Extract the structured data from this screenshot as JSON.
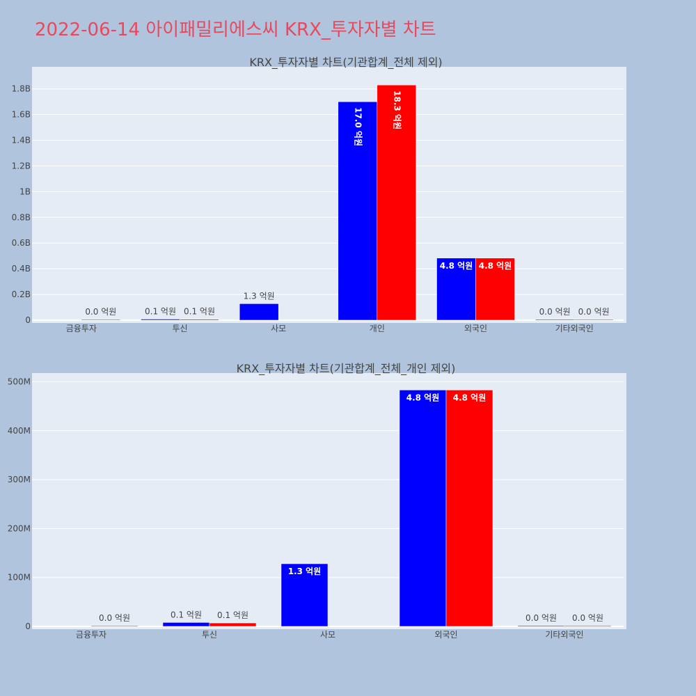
{
  "page": {
    "title": "2022-06-14 아이패밀리에스씨 KRX_투자자별 차트",
    "background": "#b0c4de",
    "title_color": "#e8495c"
  },
  "colors": {
    "plot_bg": "#e5ecf6",
    "series_blue": "#0000ff",
    "series_red": "#ff0000",
    "axis_text": "#444444",
    "grid": "#ffffff"
  },
  "chart_data": [
    {
      "type": "bar",
      "title": "KRX_투자자별 차트(기관합계_전체 제외)",
      "categories": [
        "금융투자",
        "투신",
        "사모",
        "개인",
        "외국인",
        "기타외국인"
      ],
      "series": [
        {
          "color": "#0000ff",
          "values": [
            0,
            8000000,
            128000000,
            1700000000,
            483000000,
            1500000
          ],
          "labels": [
            "",
            "0.1 억원",
            "1.3 억원",
            "17.0 억원",
            "4.8 억원",
            "0.0 억원"
          ]
        },
        {
          "color": "#ff0000",
          "values": [
            1000000,
            7000000,
            0,
            1830000000,
            483000000,
            1500000
          ],
          "labels": [
            "0.0 억원",
            "0.1 억원",
            "",
            "18.3 억원",
            "4.8 억원",
            "0.0 억원"
          ]
        }
      ],
      "ylim": [
        0,
        1950000000
      ],
      "yticks": [
        0,
        200000000,
        400000000,
        600000000,
        800000000,
        1000000000,
        1200000000,
        1400000000,
        1600000000,
        1800000000
      ],
      "ytick_labels": [
        "0",
        "0.2B",
        "0.4B",
        "0.6B",
        "0.8B",
        "1B",
        "1.2B",
        "1.4B",
        "1.6B",
        "1.8B"
      ],
      "grid": true
    },
    {
      "type": "bar",
      "title": "KRX_투자자별 차트(기관합계_전체_개인 제외)",
      "categories": [
        "금융투자",
        "투신",
        "사모",
        "외국인",
        "기타외국인"
      ],
      "series": [
        {
          "color": "#0000ff",
          "values": [
            0,
            8000000,
            128000000,
            483000000,
            1500000
          ],
          "labels": [
            "",
            "0.1 억원",
            "1.3 억원",
            "4.8 억원",
            "0.0 억원"
          ]
        },
        {
          "color": "#ff0000",
          "values": [
            1000000,
            7000000,
            0,
            483000000,
            1500000
          ],
          "labels": [
            "0.0 억원",
            "0.1 억원",
            "",
            "4.8 억원",
            "0.0 억원"
          ]
        }
      ],
      "ylim": [
        0,
        512000000
      ],
      "yticks": [
        0,
        100000000,
        200000000,
        300000000,
        400000000,
        500000000
      ],
      "ytick_labels": [
        "0",
        "100M",
        "200M",
        "300M",
        "400M",
        "500M"
      ],
      "grid": true
    }
  ]
}
